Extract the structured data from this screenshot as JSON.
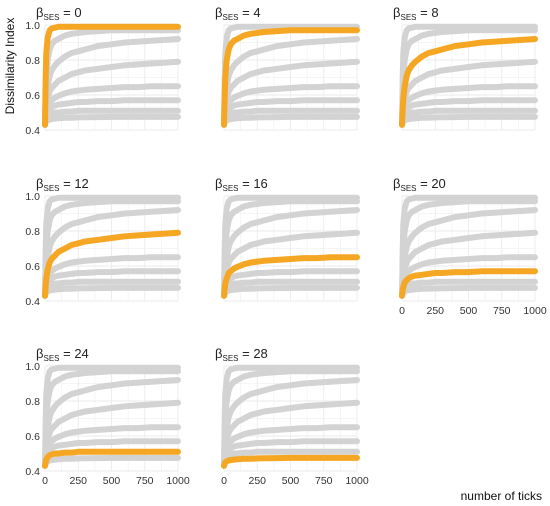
{
  "chart_data": {
    "type": "line",
    "ylabel": "Dissimilarity Index",
    "xlabel": "number of ticks",
    "xlim": [
      0,
      1000
    ],
    "ylim": [
      0.4,
      1.0
    ],
    "x_ticks": [
      "0",
      "250",
      "500",
      "750",
      "1000"
    ],
    "y_ticks": [
      "0.4",
      "0.6",
      "0.8",
      "1.0"
    ],
    "grid": true,
    "highlight_color": "#F5A623",
    "background_color": "#D3D3D3",
    "x": [
      0,
      5,
      10,
      20,
      35,
      50,
      75,
      100,
      150,
      200,
      250,
      300,
      400,
      500,
      600,
      700,
      800,
      900,
      1000
    ],
    "panels": [
      {
        "label": "β",
        "sub": "SES",
        "value": "0",
        "highlight": 0
      },
      {
        "label": "β",
        "sub": "SES",
        "value": "4",
        "highlight": 1
      },
      {
        "label": "β",
        "sub": "SES",
        "value": "8",
        "highlight": 2
      },
      {
        "label": "β",
        "sub": "SES",
        "value": "12",
        "highlight": 3
      },
      {
        "label": "β",
        "sub": "SES",
        "value": "16",
        "highlight": 4
      },
      {
        "label": "β",
        "sub": "SES",
        "value": "20",
        "highlight": 5
      },
      {
        "label": "β",
        "sub": "SES",
        "value": "24",
        "highlight": 6
      },
      {
        "label": "β",
        "sub": "SES",
        "value": "28",
        "highlight": 7
      }
    ],
    "series": [
      {
        "name": "βSES = 0",
        "values": [
          0.43,
          0.7,
          0.84,
          0.93,
          0.97,
          0.98,
          0.985,
          0.99,
          0.99,
          0.99,
          0.99,
          0.99,
          0.99,
          0.99,
          0.99,
          0.99,
          0.99,
          0.99,
          0.99
        ]
      },
      {
        "name": "βSES = 4",
        "values": [
          0.43,
          0.6,
          0.7,
          0.8,
          0.86,
          0.89,
          0.91,
          0.92,
          0.94,
          0.95,
          0.955,
          0.96,
          0.965,
          0.97,
          0.97,
          0.97,
          0.97,
          0.97,
          0.97
        ]
      },
      {
        "name": "βSES = 8",
        "values": [
          0.43,
          0.52,
          0.58,
          0.65,
          0.71,
          0.74,
          0.77,
          0.79,
          0.82,
          0.84,
          0.85,
          0.86,
          0.88,
          0.89,
          0.9,
          0.905,
          0.91,
          0.915,
          0.92
        ]
      },
      {
        "name": "βSES = 12",
        "values": [
          0.43,
          0.49,
          0.53,
          0.58,
          0.62,
          0.64,
          0.66,
          0.68,
          0.7,
          0.72,
          0.73,
          0.74,
          0.75,
          0.76,
          0.77,
          0.775,
          0.78,
          0.785,
          0.79
        ]
      },
      {
        "name": "βSES = 16",
        "values": [
          0.43,
          0.47,
          0.5,
          0.53,
          0.56,
          0.57,
          0.585,
          0.595,
          0.61,
          0.62,
          0.625,
          0.63,
          0.635,
          0.64,
          0.645,
          0.645,
          0.65,
          0.65,
          0.65
        ]
      },
      {
        "name": "βSES = 20",
        "values": [
          0.43,
          0.46,
          0.48,
          0.505,
          0.52,
          0.53,
          0.54,
          0.545,
          0.55,
          0.555,
          0.56,
          0.56,
          0.565,
          0.565,
          0.57,
          0.57,
          0.57,
          0.57,
          0.57
        ]
      },
      {
        "name": "βSES = 24",
        "values": [
          0.43,
          0.45,
          0.465,
          0.48,
          0.49,
          0.495,
          0.5,
          0.5,
          0.505,
          0.505,
          0.51,
          0.51,
          0.51,
          0.51,
          0.51,
          0.51,
          0.51,
          0.51,
          0.51
        ]
      },
      {
        "name": "βSES = 28",
        "values": [
          0.43,
          0.44,
          0.45,
          0.455,
          0.46,
          0.462,
          0.465,
          0.467,
          0.47,
          0.47,
          0.472,
          0.473,
          0.474,
          0.475,
          0.475,
          0.475,
          0.475,
          0.475,
          0.475
        ]
      }
    ]
  }
}
